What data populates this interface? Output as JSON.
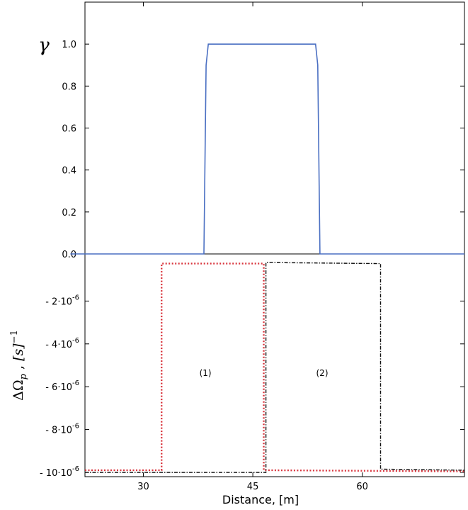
{
  "chart_data": [
    {
      "type": "line",
      "ylabel": "γ",
      "ylim": [
        0.0,
        1.2
      ],
      "yticks": [
        {
          "v": 0.0,
          "label": "0.0"
        },
        {
          "v": 0.2,
          "label": "0.2"
        },
        {
          "v": 0.4,
          "label": "0.4"
        },
        {
          "v": 0.6,
          "label": "0.6"
        },
        {
          "v": 0.8,
          "label": "0.8"
        },
        {
          "v": 1.0,
          "label": "1.0"
        }
      ],
      "series": [
        {
          "color": "#4a6fc2",
          "style": "solid",
          "x": [
            20,
            38.3,
            38.6,
            38.9,
            53.6,
            53.9,
            54.2,
            74
          ],
          "y": [
            0,
            0,
            0.9,
            1.0,
            1.0,
            0.9,
            0,
            0
          ]
        }
      ]
    },
    {
      "type": "line",
      "ylabel": "ΔΩ_p , [s]^−1",
      "ylim": [
        -10.2,
        0.2
      ],
      "yticks": [
        {
          "v": -2,
          "label": "- 2·10",
          "exp": "-6"
        },
        {
          "v": -4,
          "label": "- 4·10",
          "exp": "-6"
        },
        {
          "v": -6,
          "label": "- 6·10",
          "exp": "-6"
        },
        {
          "v": -8,
          "label": "- 8·10",
          "exp": "-6"
        },
        {
          "v": -10,
          "label": "- 10·10",
          "exp": "-6"
        }
      ],
      "xlabel": "Distance, [m]",
      "xlim": [
        22,
        74
      ],
      "xticks": [
        {
          "v": 30,
          "label": "30"
        },
        {
          "v": 45,
          "label": "45"
        },
        {
          "v": 60,
          "label": "60"
        }
      ],
      "series": [
        {
          "color": "#d9363e",
          "style": "dotted",
          "x": [
            22,
            32.5,
            32.5,
            46.5,
            46.5,
            74
          ],
          "y": [
            -9.9,
            -9.9,
            -0.25,
            -0.25,
            -9.9,
            -9.95
          ]
        },
        {
          "color": "#111111",
          "style": "dashdot",
          "x": [
            22,
            46.8,
            46.8,
            62.5,
            62.5,
            74
          ],
          "y": [
            -10.0,
            -10.0,
            -0.2,
            -0.25,
            -9.85,
            -9.9
          ]
        }
      ],
      "annotations": [
        {
          "text": "(1)",
          "x": 38.5,
          "y": -5.5
        },
        {
          "text": "(2)",
          "x": 54.5,
          "y": -5.5
        }
      ]
    }
  ]
}
